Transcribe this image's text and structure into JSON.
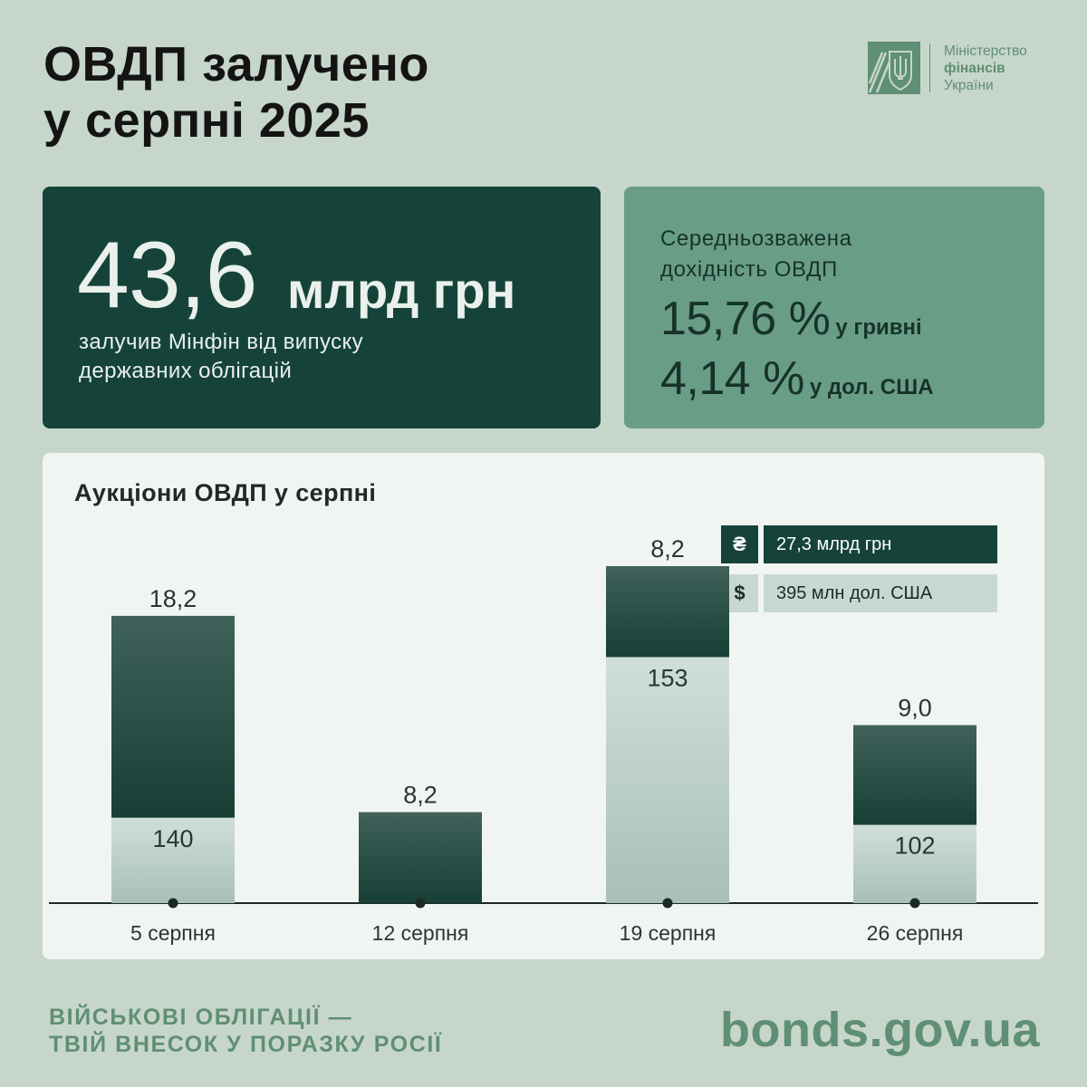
{
  "header": {
    "title_line1": "ОВДП залучено",
    "title_line2": "у серпні 2025"
  },
  "logo": {
    "icon": "trident-emblem-icon",
    "line1": "Міністерство",
    "line2": "фінансів",
    "line3": "України"
  },
  "main_card": {
    "number": "43,6",
    "unit": "млрд грн",
    "desc_line1": "залучив Мінфін від випуску",
    "desc_line2": "державних облігацій"
  },
  "yield_card": {
    "label_line1": "Середньозважена",
    "label_line2": "дохідність ОВДП",
    "uah_value": "15,76 %",
    "uah_label": "у гривні",
    "usd_value": "4,14 %",
    "usd_label": "у дол. США"
  },
  "legend": {
    "uah_symbol": "₴",
    "uah_text": "27,3 млрд грн",
    "usd_symbol": "$",
    "usd_text": "395 млн дол. США"
  },
  "colors": {
    "background": "#c7d6cb",
    "dark_green": "#15433a",
    "mid_green": "#6a9d87",
    "light_green": "#c7d8d0",
    "accent_text": "#5f8f74"
  },
  "chart_data": {
    "type": "bar",
    "stacked": true,
    "title": "Аукціони ОВДП у серпні",
    "categories": [
      "5 серпня",
      "12 серпня",
      "19 серпня",
      "26 серпня"
    ],
    "series": [
      {
        "name": "27,3 млрд грн",
        "labels": [
          "18,2",
          "8,2",
          "8,2",
          "9,0"
        ],
        "values": [
          18.2,
          8.2,
          8.2,
          9.0
        ],
        "color": "#15433a"
      },
      {
        "name": "395 млн дол. США",
        "labels": [
          "140",
          "",
          "153",
          "102"
        ],
        "values": [
          140,
          0,
          153,
          102
        ],
        "color": "#c7d8d0"
      }
    ],
    "visual_share_of_bar": [
      0.297,
      0,
      0.73,
      0.439
    ],
    "grid": false,
    "legend_position": "top-right"
  },
  "footer": {
    "slogan_line1": "ВІЙСЬКОВІ ОБЛІГАЦІЇ —",
    "slogan_line2": "ТВІЙ ВНЕСОК У ПОРАЗКУ РОСІЇ",
    "site": "bonds.gov.ua"
  }
}
